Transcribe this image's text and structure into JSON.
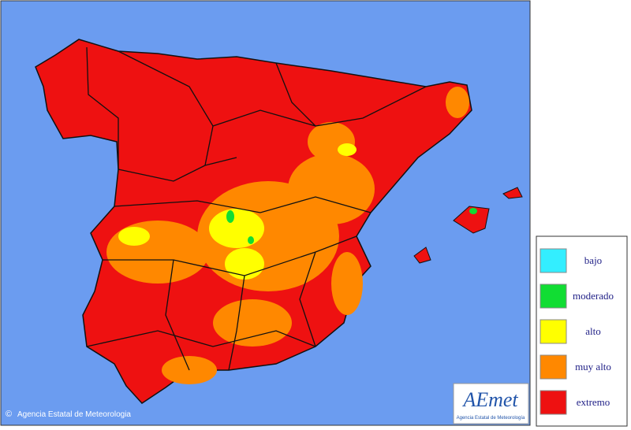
{
  "legend": {
    "items": [
      {
        "label": "bajo",
        "color": "#33eeff"
      },
      {
        "label": "moderado",
        "color": "#11dd33"
      },
      {
        "label": "alto",
        "color": "#ffff00"
      },
      {
        "label": "muy alto",
        "color": "#ff8800"
      },
      {
        "label": "extremo",
        "color": "#ee1111"
      }
    ]
  },
  "logo": {
    "name": "AEmet",
    "subtitle": "Agencia Estatal de Meteorología"
  },
  "footer": {
    "copyright": "©",
    "agency": "Agencia Estatal de Meteorologia"
  }
}
